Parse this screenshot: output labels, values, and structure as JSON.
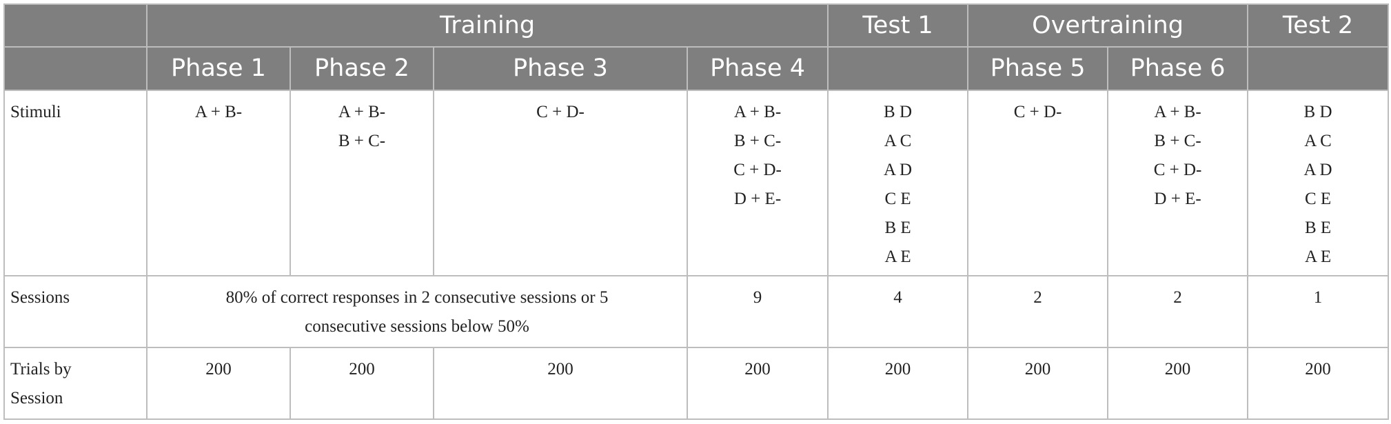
{
  "header": {
    "groups": {
      "training": "Training",
      "test1": "Test 1",
      "overtraining": "Overtraining",
      "test2": "Test 2"
    },
    "phases": {
      "p1": "Phase 1",
      "p2": "Phase 2",
      "p3": "Phase 3",
      "p4": "Phase 4",
      "p5": "Phase 5",
      "p6": "Phase 6"
    }
  },
  "rows": {
    "stimuli": {
      "label": "Stimuli",
      "p1": [
        "A + B-"
      ],
      "p2": [
        "A + B-",
        "B + C-"
      ],
      "p3": [
        "C + D-"
      ],
      "p4": [
        "A + B-",
        "B + C-",
        "C + D-",
        "D + E-"
      ],
      "test1": [
        "B D",
        "A C",
        "A D",
        "C E",
        "B E",
        "A E"
      ],
      "p5": [
        "C + D-"
      ],
      "p6": [
        "A + B-",
        "B + C-",
        "C + D-",
        "D + E-"
      ],
      "test2": [
        "B D",
        "A C",
        "A D",
        "C E",
        "B E",
        "A E"
      ]
    },
    "sessions": {
      "label": "Sessions",
      "criterion_line1": "80% of correct responses in 2 consecutive sessions or 5",
      "criterion_line2": "consecutive sessions below 50%",
      "p4": "9",
      "test1": "4",
      "p5": "2",
      "p6": "2",
      "test2": "1"
    },
    "trials": {
      "label_line1": "Trials by",
      "label_line2": "Session",
      "p1": "200",
      "p2": "200",
      "p3": "200",
      "p4": "200",
      "test1": "200",
      "p5": "200",
      "p6": "200",
      "test2": "200"
    }
  }
}
